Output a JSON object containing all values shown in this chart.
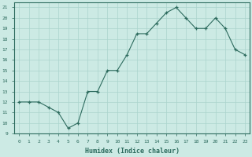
{
  "x_data": [
    0,
    1,
    2,
    3,
    4,
    5,
    6,
    7,
    8,
    9,
    10,
    11,
    12,
    13,
    14,
    15,
    16,
    17,
    18,
    19,
    20,
    21,
    22,
    23
  ],
  "y_data": [
    12,
    12,
    12,
    11.5,
    11,
    9.5,
    10,
    13,
    13,
    15,
    15,
    16.5,
    18.5,
    18.5,
    19.5,
    20.5,
    21,
    20,
    19,
    19,
    20,
    19,
    17,
    16.5
  ],
  "line_color": "#2d6b5e",
  "bg_color": "#cceae4",
  "grid_color": "#aad4cc",
  "xlabel": "Humidex (Indice chaleur)",
  "ylim": [
    9,
    21.5
  ],
  "xlim": [
    -0.5,
    23.5
  ],
  "yticks": [
    9,
    10,
    11,
    12,
    13,
    14,
    15,
    16,
    17,
    18,
    19,
    20,
    21
  ],
  "xticks": [
    0,
    1,
    2,
    3,
    4,
    5,
    6,
    7,
    8,
    9,
    10,
    11,
    12,
    13,
    14,
    15,
    16,
    17,
    18,
    19,
    20,
    21,
    22,
    23
  ]
}
